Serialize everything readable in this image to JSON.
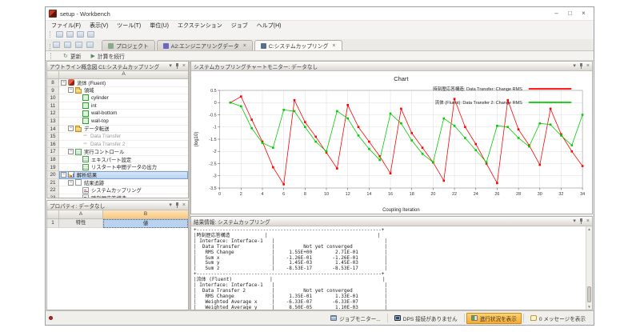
{
  "window": {
    "title": "setup - Workbench",
    "minimize": "–",
    "maximize": "□",
    "close": "×"
  },
  "menu": {
    "items": [
      "ファイル(F)",
      "表示(V)",
      "ツール(T)",
      "単位(U)",
      "エクステンション",
      "ジョブ",
      "ヘルプ(H)"
    ]
  },
  "quickbar": {
    "icons": [
      "new-file-icon",
      "open-file-icon",
      "save-icon",
      "help-icon"
    ]
  },
  "tabbar": {
    "icons": [
      "new-file-icon",
      "open-folder-icon",
      "save-icon",
      "import-icon"
    ],
    "close_glyph": "×",
    "tabs": [
      {
        "label": "プロジェクト",
        "icon_color": "#8aa88a",
        "closable": false,
        "active": false
      },
      {
        "label": "A2:エンジニアリングデータ",
        "icon_color": "#6a67c2",
        "closable": true,
        "active": false
      },
      {
        "label": "C:システムカップリング",
        "icon_color": "#5a6f85",
        "closable": true,
        "active": true
      }
    ]
  },
  "actionbar": {
    "items": [
      {
        "label": "更新",
        "glyph": "↻"
      },
      {
        "label": "計算を続行",
        "glyph": "▶"
      }
    ]
  },
  "outline": {
    "title": "アウトライン概念図 C1:システムカップリング",
    "column_header": "A",
    "rows": [
      {
        "num": "8",
        "label": "流体 (Fluent)",
        "level": 1,
        "icon": "fluent",
        "expander": true
      },
      {
        "num": "9",
        "label": "領域",
        "level": 2,
        "icon": "folder",
        "expander": true
      },
      {
        "num": "10",
        "label": "cylinder",
        "level": 3,
        "icon": "region"
      },
      {
        "num": "11",
        "label": "int",
        "level": 3,
        "icon": "region"
      },
      {
        "num": "12",
        "label": "wall-bottom",
        "level": 3,
        "icon": "region"
      },
      {
        "num": "13",
        "label": "wall-top",
        "level": 3,
        "icon": "region"
      },
      {
        "num": "14",
        "label": "データ転送",
        "level": 2,
        "icon": "folder",
        "expander": true
      },
      {
        "num": "15",
        "label": "Data Transfer",
        "level": 3,
        "icon": "transfer",
        "gray": true
      },
      {
        "num": "16",
        "label": "Data Transfer 2",
        "level": 3,
        "icon": "transfer",
        "gray": true
      },
      {
        "num": "17",
        "label": "実行コントロール",
        "level": 2,
        "icon": "exec",
        "expander": true
      },
      {
        "num": "18",
        "label": "エキスパート設定",
        "level": 3,
        "icon": "exec"
      },
      {
        "num": "19",
        "label": "リスタート中間データの出力",
        "level": 3,
        "icon": "exec"
      },
      {
        "num": "20",
        "label": "解析結果",
        "level": 1,
        "icon": "chart",
        "expander": true,
        "selected": true
      },
      {
        "num": "21",
        "label": "結果追跡",
        "level": 2,
        "icon": "page",
        "expander": true
      },
      {
        "num": "22",
        "label": "システムカップリング",
        "level": 3,
        "icon": "chartpage"
      },
      {
        "num": "23",
        "label": "時刻歴応答構造",
        "level": 3,
        "icon": "chartpage"
      }
    ]
  },
  "properties": {
    "title": "プロパティ: データなし",
    "col_a": "A",
    "col_b": "B",
    "row_num": "1",
    "row_a": "特性",
    "row_b": "値"
  },
  "chart_panel": {
    "title": "システムカップリングチャートモニター: データなし"
  },
  "chart_data": {
    "type": "line",
    "title": "Chart",
    "xlabel": "Coupling Iteration",
    "ylabel": "(log10)",
    "xlim": [
      0,
      34
    ],
    "ylim": [
      -3.5,
      0.5
    ],
    "x_ticks": [
      0,
      2,
      4,
      6,
      8,
      10,
      12,
      14,
      16,
      18,
      20,
      22,
      24,
      26,
      28,
      30,
      32,
      34
    ],
    "y_ticks": [
      0.5,
      0,
      -0.5,
      -1,
      -1.5,
      -2,
      -2.5,
      -3,
      -3.5
    ],
    "grid": true,
    "legend_position": "top-right",
    "x": [
      1,
      2,
      3,
      4,
      5,
      6,
      7,
      8,
      9,
      10,
      11,
      12,
      13,
      14,
      15,
      16,
      17,
      18,
      19,
      20,
      21,
      22,
      23,
      24,
      25,
      26,
      27,
      28,
      29,
      30,
      31,
      32,
      33,
      34
    ],
    "series": [
      {
        "name": "時刻歴応答構造: Data Transfer: Change RMS",
        "color": "#ff0000",
        "values": [
          0.0,
          0.25,
          -0.7,
          -1.6,
          -2.65,
          -3.35,
          0.1,
          -0.8,
          -1.4,
          -2.05,
          -2.7,
          -0.1,
          -1.0,
          -1.6,
          -2.2,
          -2.9,
          -0.25,
          -1.25,
          -1.85,
          -2.45,
          -3.2,
          0.15,
          -1.0,
          -1.7,
          -2.5,
          -3.3,
          0.1,
          -1.1,
          -1.75,
          -2.55,
          -0.25,
          -1.3,
          -2.0,
          -2.6
        ]
      },
      {
        "name": "流体 (Fluent): Data Transfer 2: Change RMS",
        "color": "#00cc00",
        "values": [
          0.0,
          -0.15,
          -1.05,
          -1.65,
          -1.85,
          -0.3,
          -0.35,
          -1.0,
          -1.6,
          -2.0,
          -0.35,
          -0.65,
          -1.35,
          -1.9,
          -2.35,
          -0.45,
          -0.85,
          -1.55,
          -2.1,
          -2.45,
          -0.65,
          -0.95,
          -1.45,
          -1.95,
          -2.45,
          -0.95,
          -1.0,
          -1.45,
          -1.8,
          -0.85,
          -0.9,
          -1.35,
          -1.75,
          -0.5
        ]
      }
    ]
  },
  "results": {
    "title": "結果情報: システムカップリング",
    "lines": [
      "+----------------------------------------------------------------+",
      "|時刻歴応答構造            |                                      |",
      "| Interface: Interface-1   |                                      |",
      "|  Data Transfer           |          Not yet converged           |",
      "|   RMS Change             |     1.55E+00        2.71E-01         |",
      "|   Sum x                  |    -1.26E-01       -1.26E-01         |",
      "|   Sum y                  |     1.45E-03        1.45E-03         |",
      "|   Sum z                  |    -8.53E-17       -8.53E-17         |",
      "+----------------------------------------------------------------+",
      "|流体 (Fluent)             |                                      |",
      "| Interface: Interface-1   |                                      |",
      "|  Data Transfer 2         |          Not yet converged           |",
      "|   RMS Change             |     1.35E-01        1.33E-01         |",
      "|   Weighted Average x     |    -6.33E-07       -6.33E-07         |",
      "|   Weighted Average y     |     8.50E-05        1.10E-03         |",
      "|   Weighted Average z     |     2.57E-21        0.00E+00         |",
      "+----------------------------------------------------------------+"
    ]
  },
  "statusbar": {
    "items": [
      {
        "label": "ジョブモニター...",
        "icon": "job-monitor",
        "highlight": false
      },
      {
        "label": "DPS 接続がありません",
        "icon": "dps-monitor",
        "highlight": false
      },
      {
        "label": "進行状況を表示",
        "icon": "progress",
        "highlight": true
      },
      {
        "label": "0 メッセージを表示",
        "icon": "messages",
        "highlight": false
      }
    ]
  }
}
